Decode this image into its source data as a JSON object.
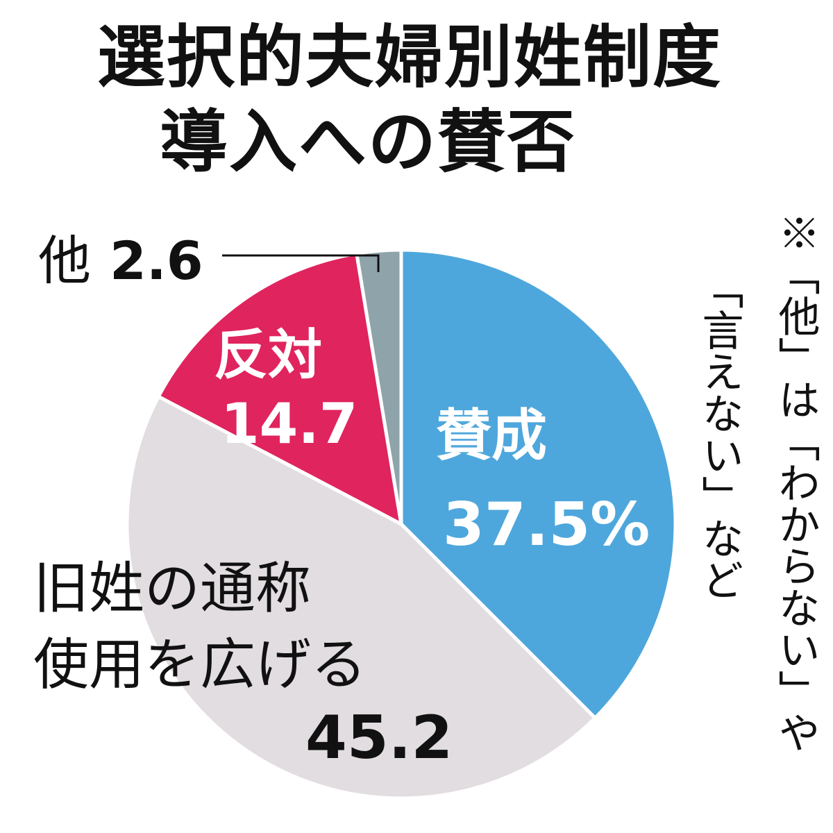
{
  "title": {
    "line1": "選択的夫婦別姓制度",
    "line2": "導入への賛否"
  },
  "note": {
    "line1": "※「他」は「わからない」や",
    "line2": "「言えない」など"
  },
  "colors": {
    "support": "#4ea7dc",
    "oppose": "#e0245e",
    "maiden_name": "#e2dde0",
    "other": "#8fa3ab",
    "label_dark": "#111111",
    "label_light": "#ffffff"
  },
  "chart_data": {
    "type": "pie",
    "title": "選択的夫婦別姓制度導入への賛否",
    "unit": "%",
    "start_angle": "12 o'clock",
    "direction": "clockwise",
    "slices": [
      {
        "id": "support",
        "label": "賛成",
        "value": 37.5,
        "value_text": "37.5%",
        "color": "#4ea7dc",
        "text_color": "#ffffff"
      },
      {
        "id": "maiden_name",
        "label": "旧姓の通称使用を広げる",
        "label_line1": "旧姓の通称",
        "label_line2": "使用を広げる",
        "value": 45.2,
        "value_text": "45.2",
        "color": "#e2dde0",
        "text_color": "#111111"
      },
      {
        "id": "oppose",
        "label": "反対",
        "value": 14.7,
        "value_text": "14.7",
        "color": "#e0245e",
        "text_color": "#ffffff"
      },
      {
        "id": "other",
        "label": "他",
        "value": 2.6,
        "value_text": "2.6",
        "color": "#8fa3ab",
        "text_color": "#111111"
      }
    ]
  }
}
